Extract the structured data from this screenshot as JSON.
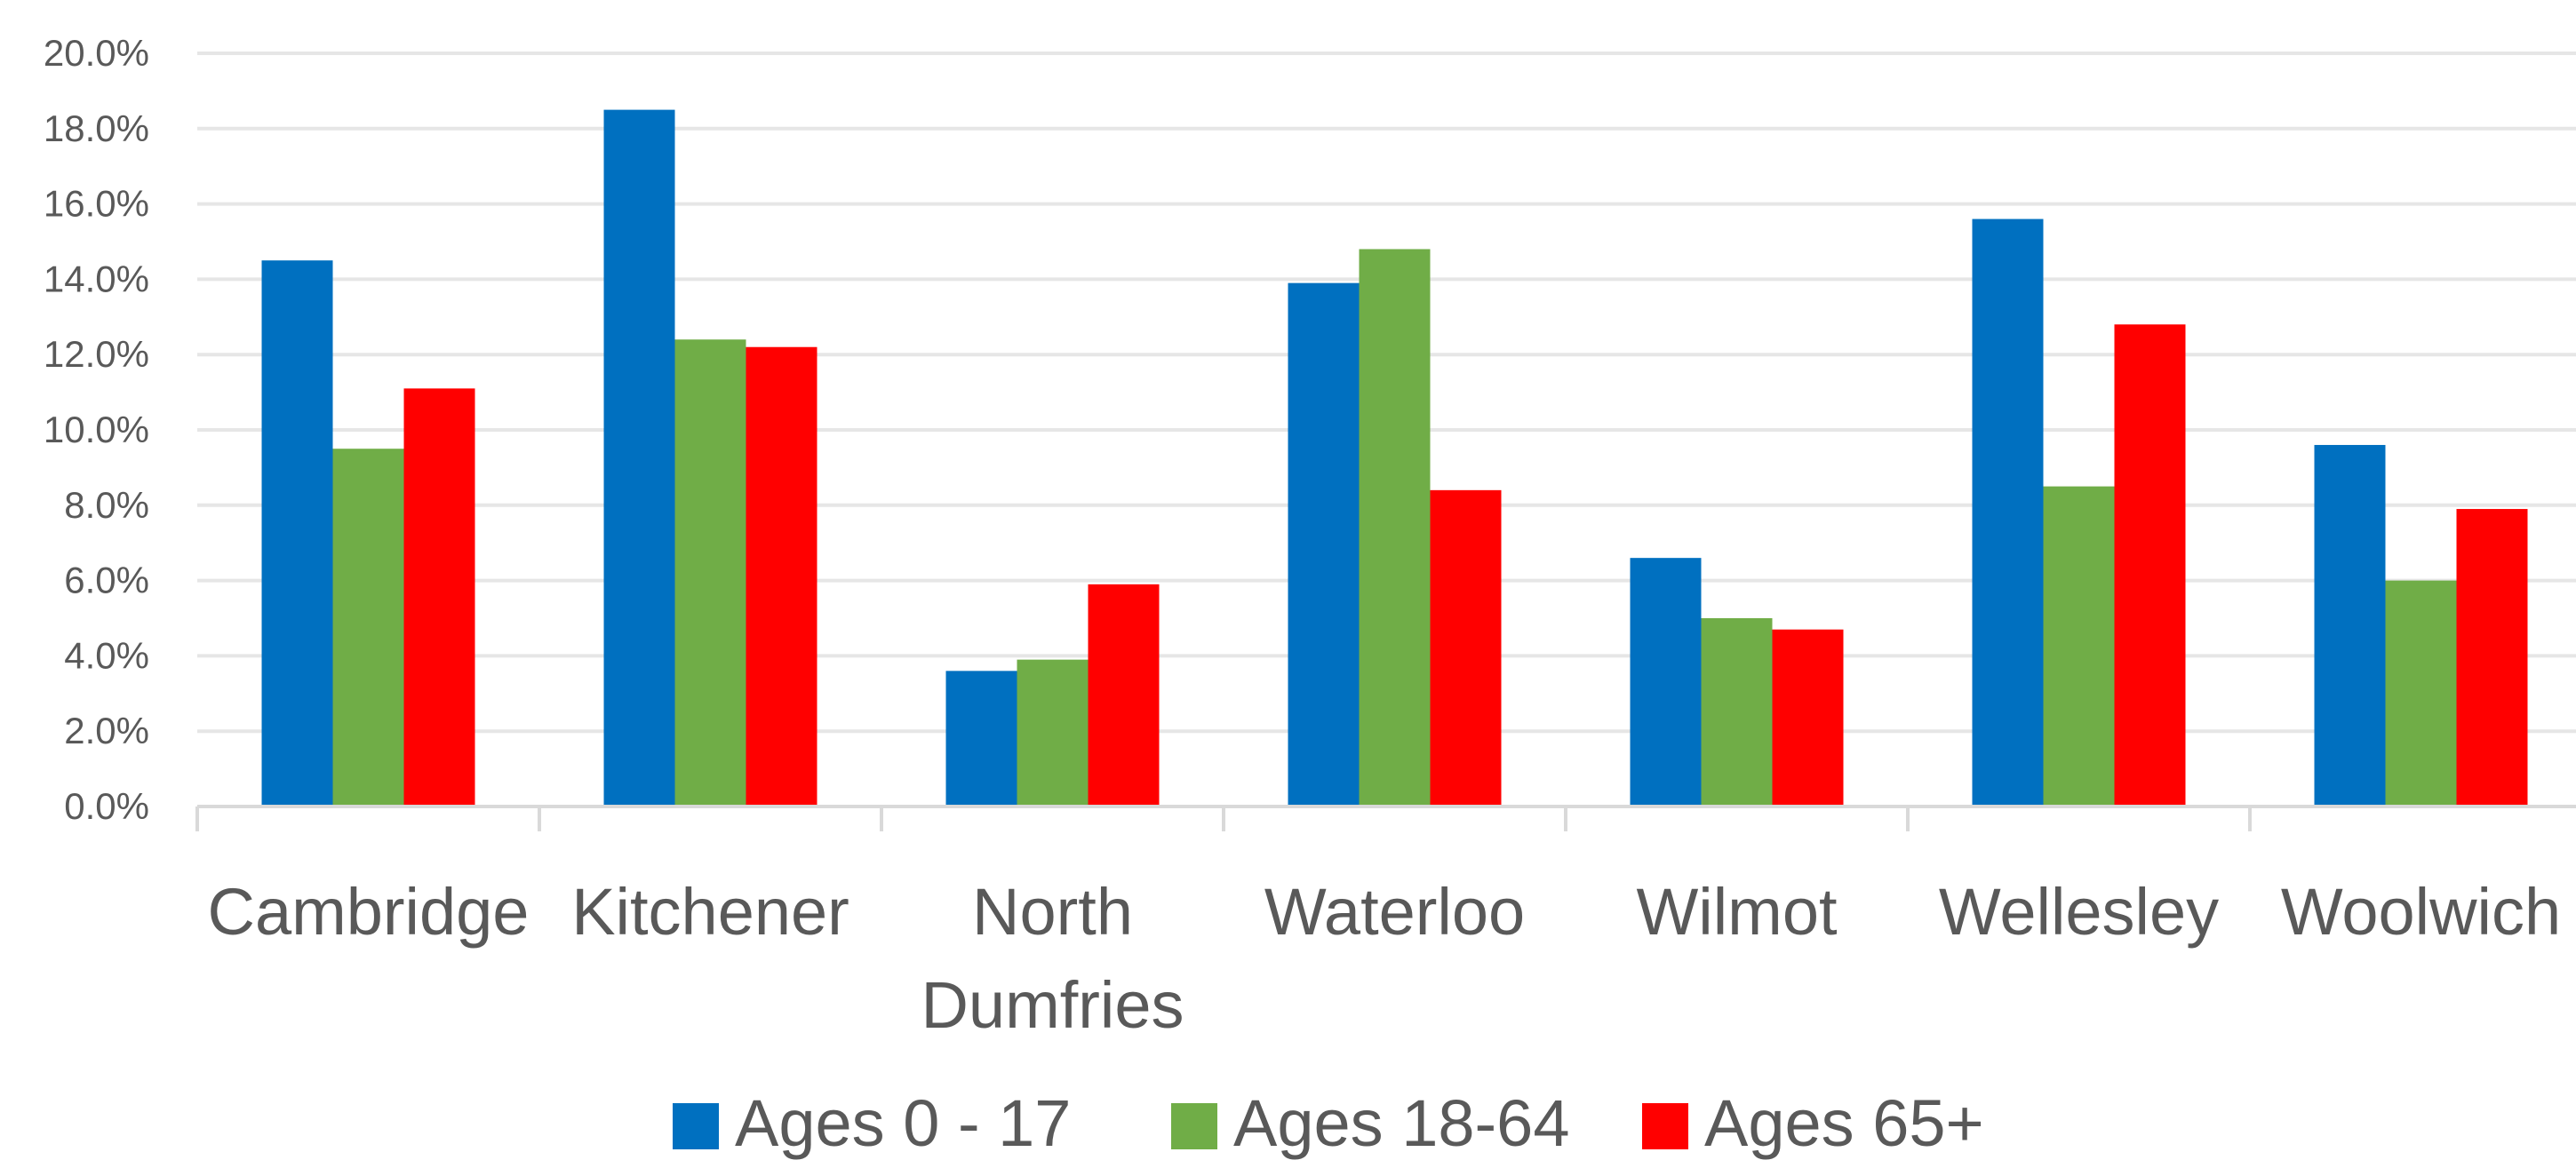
{
  "chart_data": {
    "type": "bar",
    "title": "",
    "xlabel": "",
    "ylabel": "",
    "categories": [
      [
        "Cambridge"
      ],
      [
        "Kitchener"
      ],
      [
        "North",
        "Dumfries"
      ],
      [
        "Waterloo"
      ],
      [
        "Wilmot"
      ],
      [
        "Wellesley"
      ],
      [
        "Woolwich"
      ]
    ],
    "series": [
      {
        "name": "Ages 0 - 17",
        "color": "#0070C0",
        "values": [
          14.5,
          18.5,
          3.6,
          13.9,
          6.6,
          15.6,
          9.6
        ]
      },
      {
        "name": "Ages 18-64",
        "color": "#70AD47",
        "values": [
          9.5,
          12.4,
          3.9,
          14.8,
          5.0,
          8.5,
          6.0
        ]
      },
      {
        "name": "Ages 65+",
        "color": "#FF0000",
        "values": [
          11.1,
          12.2,
          5.9,
          8.4,
          4.7,
          12.8,
          7.9
        ]
      }
    ],
    "ylim": [
      0,
      20
    ],
    "yticks": [
      0,
      2,
      4,
      6,
      8,
      10,
      12,
      14,
      16,
      18,
      20
    ],
    "ytick_labels": [
      "0.0%",
      "2.0%",
      "4.0%",
      "6.0%",
      "8.0%",
      "10.0%",
      "12.0%",
      "14.0%",
      "16.0%",
      "18.0%",
      "20.0%"
    ],
    "grid": true,
    "legend_position": "bottom-center",
    "colors": {
      "grid": "#E6E6E6",
      "axis": "#D9D9D9",
      "text": "#595959"
    }
  }
}
